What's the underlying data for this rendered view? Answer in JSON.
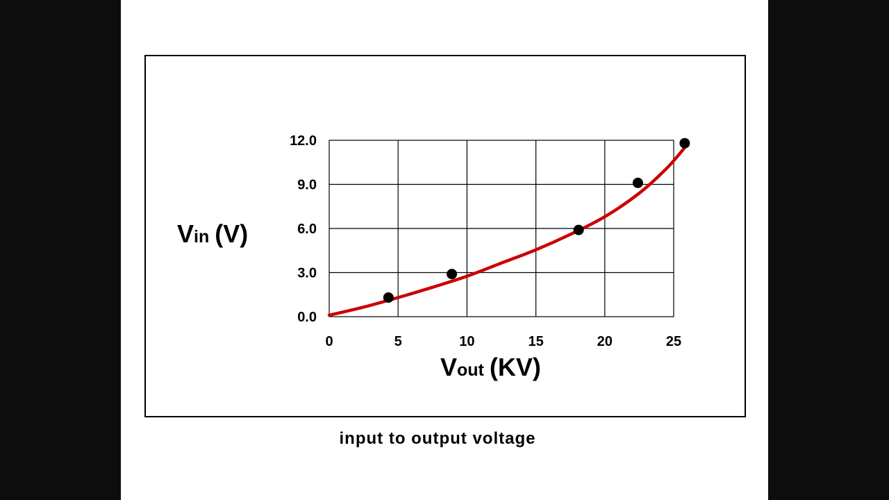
{
  "caption": "input to output voltage",
  "chart_data": {
    "type": "scatter",
    "xlabel_main": "V",
    "xlabel_sub": "out",
    "xlabel_unit": "(KV)",
    "ylabel_main": "V",
    "ylabel_sub": "in",
    "ylabel_unit": "(V)",
    "xlim": [
      0,
      25
    ],
    "ylim": [
      0,
      12
    ],
    "x_ticks": [
      0,
      5,
      10,
      15,
      20,
      25
    ],
    "x_tick_labels": [
      "0",
      "5",
      "10",
      "15",
      "20",
      "25"
    ],
    "y_ticks": [
      0,
      3,
      6,
      9,
      12
    ],
    "y_tick_labels": [
      "0.0",
      "3.0",
      "6.0",
      "9.0",
      "12.0"
    ],
    "grid": true,
    "series": [
      {
        "type": "scatter",
        "color": "#000000",
        "points": [
          {
            "x": 4.3,
            "y": 1.3
          },
          {
            "x": 8.9,
            "y": 2.9
          },
          {
            "x": 18.1,
            "y": 5.9
          },
          {
            "x": 22.4,
            "y": 9.1
          },
          {
            "x": 25.8,
            "y": 11.8
          }
        ]
      },
      {
        "type": "line",
        "color": "#cc0000",
        "points": [
          {
            "x": 0,
            "y": 0.1
          },
          {
            "x": 2.5,
            "y": 0.65
          },
          {
            "x": 5,
            "y": 1.3
          },
          {
            "x": 7.5,
            "y": 2.0
          },
          {
            "x": 10,
            "y": 2.75
          },
          {
            "x": 12.5,
            "y": 3.65
          },
          {
            "x": 15,
            "y": 4.55
          },
          {
            "x": 17.5,
            "y": 5.6
          },
          {
            "x": 20,
            "y": 6.8
          },
          {
            "x": 22.5,
            "y": 8.4
          },
          {
            "x": 24.5,
            "y": 10.1
          },
          {
            "x": 25.8,
            "y": 11.5
          }
        ]
      }
    ]
  }
}
